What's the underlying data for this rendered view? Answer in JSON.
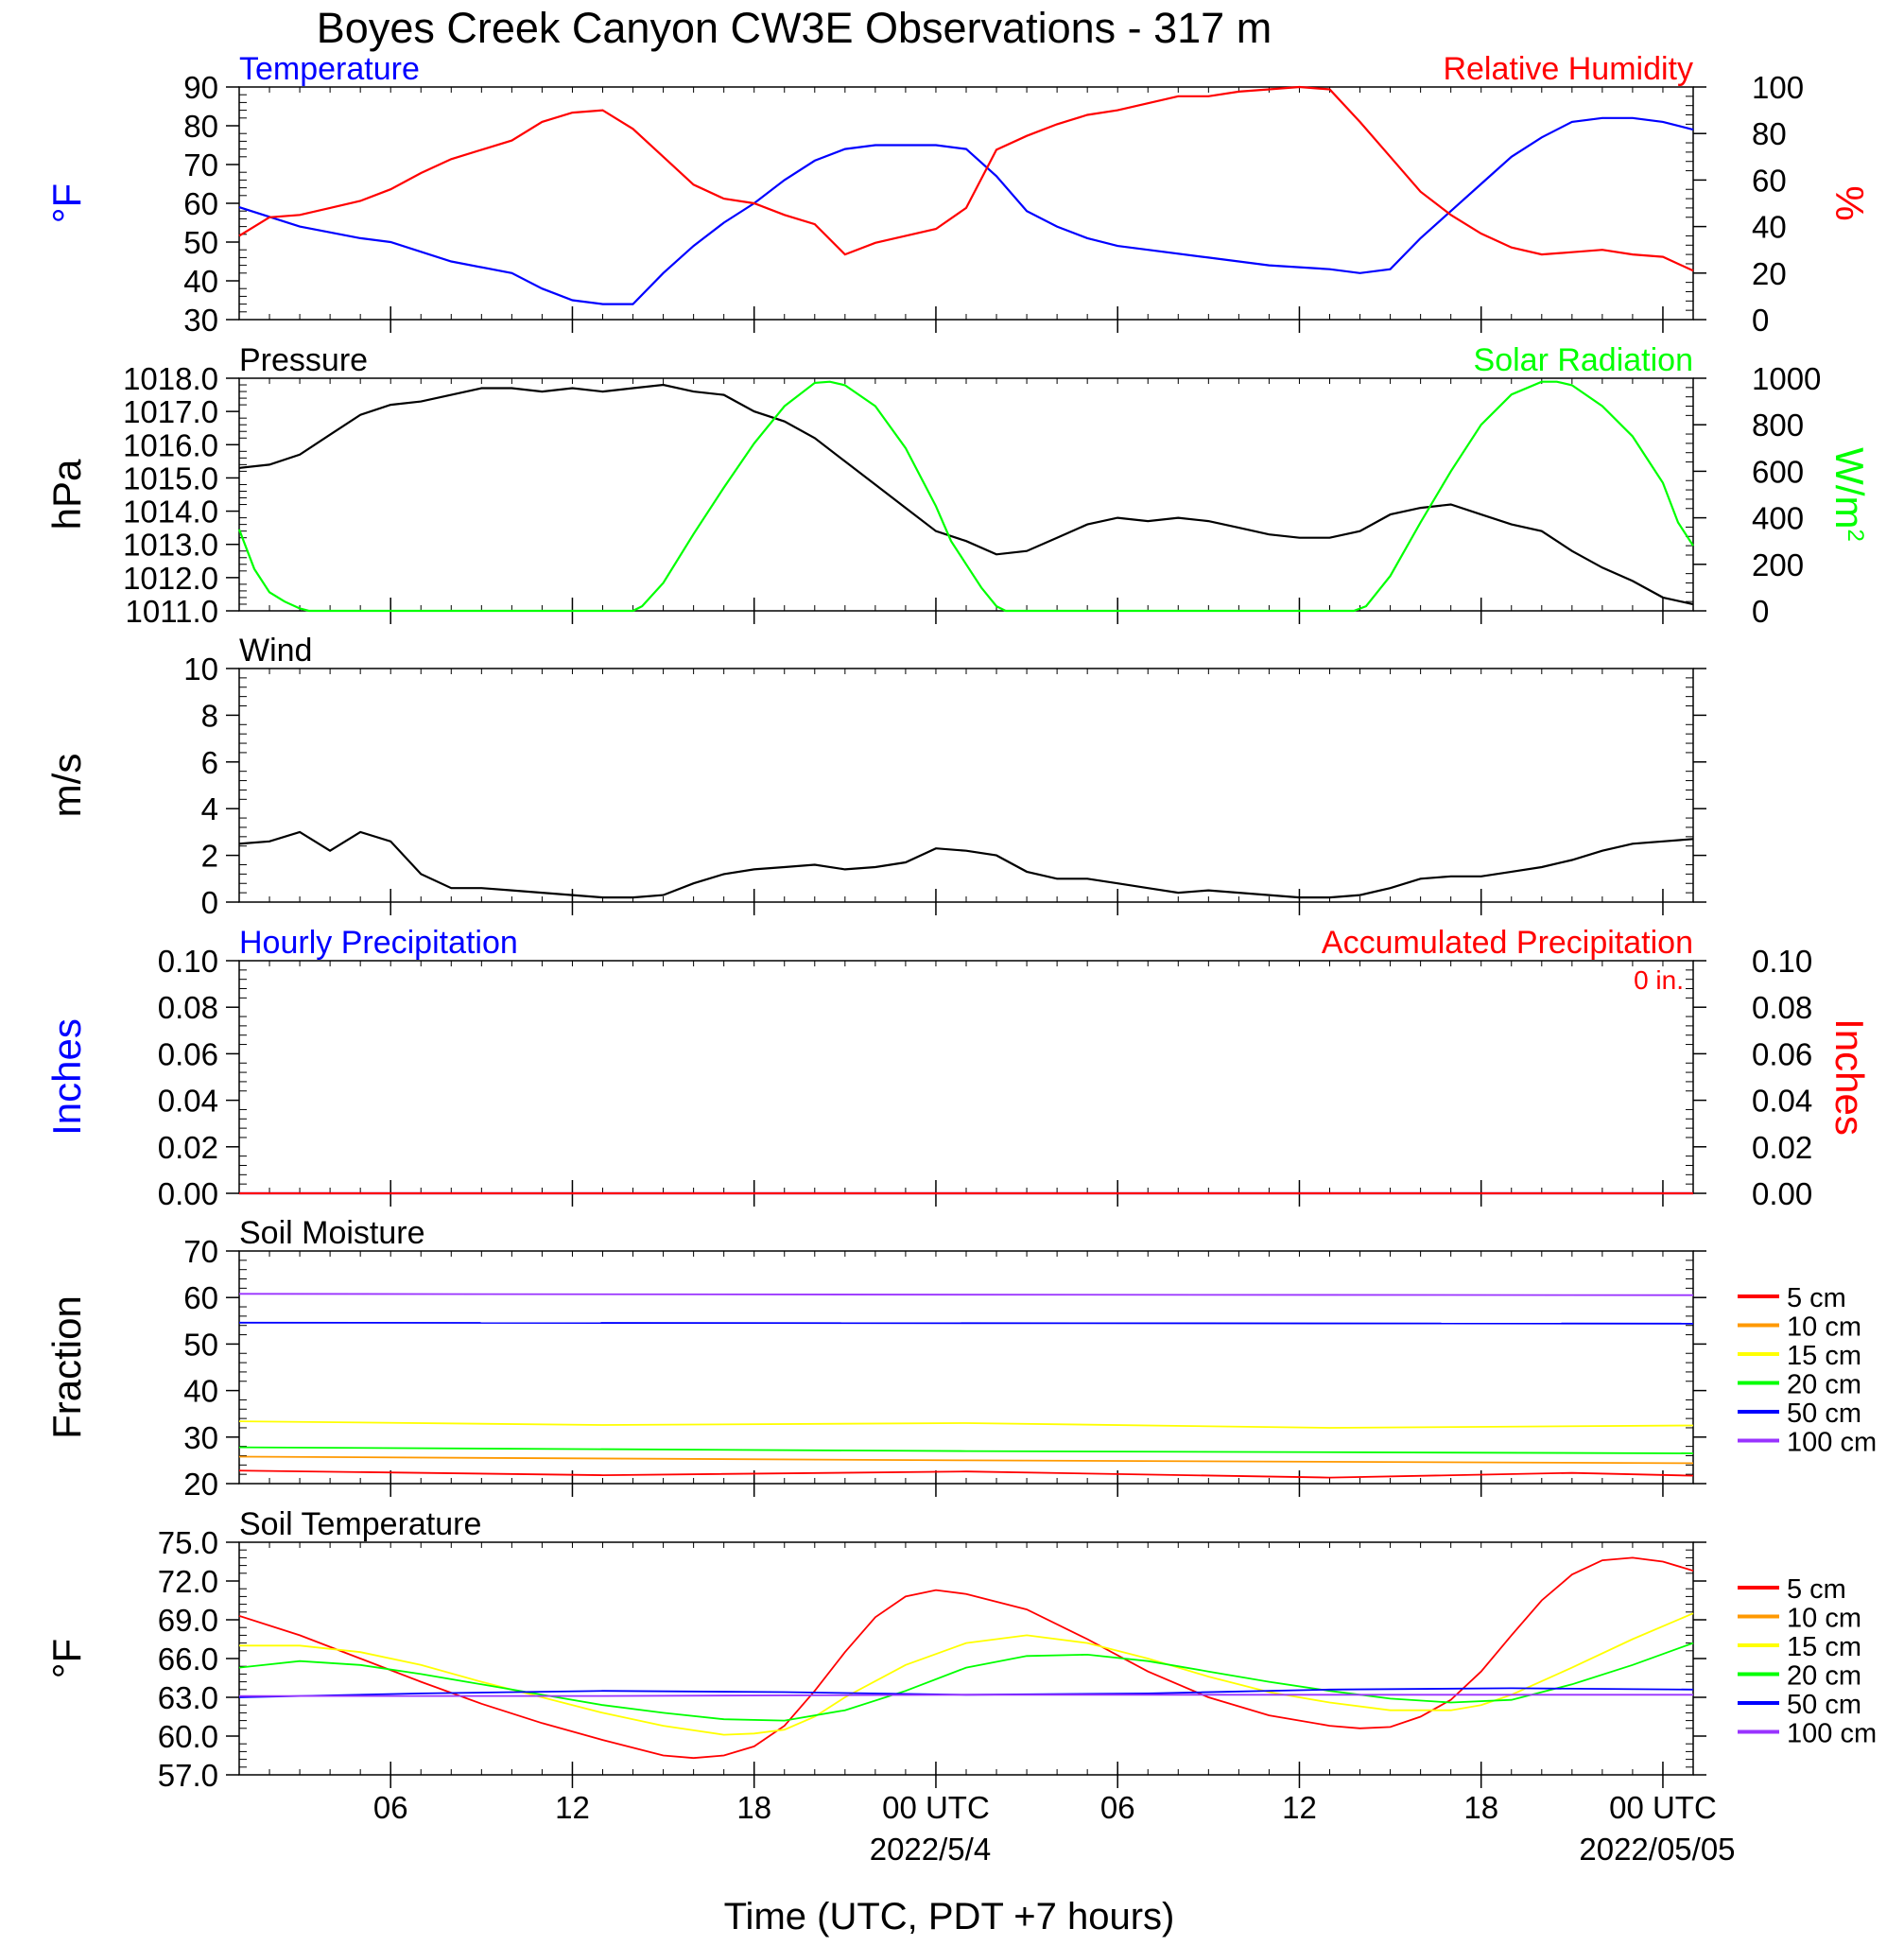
{
  "title": "Boyes Creek Canyon CW3E Observations - 317 m",
  "colors": {
    "temperature": "#0000ff",
    "humidity": "#ff0000",
    "pressure": "#000000",
    "solar": "#00ff00",
    "wind": "#000000",
    "barbs": "#ff0000",
    "hourly_precip": "#0000ff",
    "accum_precip": "#ff0000",
    "depth_5cm": "#ff0000",
    "depth_10cm": "#ff9900",
    "depth_15cm": "#ffff00",
    "depth_20cm": "#00ff00",
    "depth_50cm": "#0000ff",
    "depth_100cm": "#9933ff"
  },
  "x_axis": {
    "xlabel": "Time (UTC, PDT +7 hours)",
    "range_hours": [
      0,
      48
    ],
    "ticks": [
      {
        "label": "06",
        "hour": 5
      },
      {
        "label": "12",
        "hour": 11
      },
      {
        "label": "18",
        "hour": 17
      },
      {
        "label": "00 UTC",
        "hour": 23
      },
      {
        "label": "06",
        "hour": 29
      },
      {
        "label": "12",
        "hour": 35
      },
      {
        "label": "18",
        "hour": 41
      },
      {
        "label": "00 UTC",
        "hour": 47
      }
    ],
    "date_labels": [
      {
        "label": "2022/5/4",
        "hour": 23
      },
      {
        "label": "2022/05/05",
        "hour": 47
      }
    ]
  },
  "chart_data": [
    {
      "id": "temp_rh",
      "type": "line",
      "left_title": "Temperature",
      "right_title": "Relative Humidity",
      "left_ylabel": "°F",
      "right_ylabel": "%",
      "left_ylim": [
        30,
        90
      ],
      "right_ylim": [
        0,
        100
      ],
      "left_ticks": [
        "30",
        "40",
        "50",
        "60",
        "70",
        "80",
        "90"
      ],
      "right_ticks": [
        "0",
        "20",
        "40",
        "60",
        "80",
        "100"
      ],
      "series": [
        {
          "name": "Temperature",
          "axis": "left",
          "color": "#0000ff",
          "x": [
            0,
            2,
            4,
            5,
            7,
            9,
            10,
            11,
            12,
            13,
            14,
            15,
            16,
            17,
            18,
            19,
            20,
            21,
            22,
            23,
            24,
            25,
            26,
            27,
            28,
            29,
            30,
            32,
            34,
            36,
            37,
            38,
            39,
            40,
            41,
            42,
            43,
            44,
            45,
            46,
            47,
            48
          ],
          "y": [
            59,
            54,
            51,
            50,
            45,
            42,
            38,
            35,
            34,
            34,
            42,
            49,
            55,
            60,
            66,
            71,
            74,
            75,
            75,
            75,
            74,
            67,
            58,
            54,
            51,
            49,
            48,
            46,
            44,
            43,
            42,
            43,
            51,
            58,
            65,
            72,
            77,
            81,
            82,
            82,
            81,
            79
          ]
        },
        {
          "name": "Relative Humidity",
          "axis": "right",
          "color": "#ff0000",
          "x": [
            0,
            1,
            2,
            3,
            4,
            5,
            6,
            7,
            8,
            9,
            10,
            11,
            12,
            13,
            14,
            15,
            16,
            17,
            18,
            19,
            20,
            21,
            22,
            23,
            24,
            25,
            26,
            27,
            28,
            29,
            30,
            31,
            32,
            33,
            34,
            35,
            36,
            37,
            38,
            39,
            40,
            41,
            42,
            43,
            44,
            45,
            46,
            47,
            48
          ],
          "y": [
            36,
            44,
            45,
            48,
            51,
            56,
            63,
            69,
            73,
            77,
            85,
            89,
            90,
            82,
            70,
            58,
            52,
            50,
            45,
            41,
            28,
            33,
            36,
            39,
            48,
            73,
            79,
            84,
            88,
            90,
            93,
            96,
            96,
            98,
            99,
            100,
            99,
            85,
            70,
            55,
            45,
            37,
            31,
            28,
            29,
            30,
            28,
            27,
            21
          ]
        }
      ]
    },
    {
      "id": "pressure_solar",
      "type": "line",
      "left_title": "Pressure",
      "right_title": "Solar Radiation",
      "left_ylabel": "hPa",
      "right_ylabel": "W/m",
      "right_ylabel_sup": "2",
      "left_ylim": [
        1011,
        1018
      ],
      "right_ylim": [
        0,
        1000
      ],
      "left_ticks": [
        "1011.0",
        "1012.0",
        "1013.0",
        "1014.0",
        "1015.0",
        "1016.0",
        "1017.0",
        "1018.0"
      ],
      "right_ticks": [
        "0",
        "200",
        "400",
        "600",
        "800",
        "1000"
      ],
      "series": [
        {
          "name": "Pressure",
          "axis": "left",
          "color": "#000000",
          "x": [
            0,
            1,
            2,
            3,
            4,
            5,
            6,
            7,
            8,
            9,
            10,
            11,
            12,
            13,
            14,
            15,
            16,
            17,
            18,
            19,
            20,
            21,
            22,
            23,
            24,
            25,
            26,
            27,
            28,
            29,
            30,
            31,
            32,
            33,
            34,
            35,
            36,
            37,
            38,
            39,
            40,
            41,
            42,
            43,
            44,
            45,
            46,
            47,
            48
          ],
          "y": [
            1015.3,
            1015.4,
            1015.7,
            1016.3,
            1016.9,
            1017.2,
            1017.3,
            1017.5,
            1017.7,
            1017.7,
            1017.6,
            1017.7,
            1017.6,
            1017.7,
            1017.8,
            1017.6,
            1017.5,
            1017.0,
            1016.7,
            1016.2,
            1015.5,
            1014.8,
            1014.1,
            1013.4,
            1013.1,
            1012.7,
            1012.8,
            1013.2,
            1013.6,
            1013.8,
            1013.7,
            1013.8,
            1013.7,
            1013.5,
            1013.3,
            1013.2,
            1013.2,
            1013.4,
            1013.9,
            1014.1,
            1014.2,
            1013.9,
            1013.6,
            1013.4,
            1012.8,
            1012.3,
            1011.9,
            1011.4,
            1011.2
          ]
        },
        {
          "name": "Solar Radiation",
          "axis": "right",
          "color": "#00ff00",
          "x": [
            0,
            0.5,
            1,
            1.5,
            2,
            2.3,
            13.0,
            13.3,
            14,
            15,
            16,
            17,
            18,
            19,
            19.5,
            20,
            21,
            22,
            23,
            23.5,
            24,
            24.5,
            25,
            25.3,
            36.8,
            37.2,
            38,
            39,
            40,
            41,
            42,
            43,
            43.5,
            44,
            45,
            46,
            47,
            47.5,
            48
          ],
          "y": [
            350,
            180,
            80,
            40,
            10,
            0,
            0,
            20,
            120,
            330,
            530,
            720,
            880,
            980,
            985,
            970,
            880,
            700,
            450,
            300,
            200,
            100,
            20,
            0,
            0,
            20,
            150,
            380,
            600,
            800,
            930,
            985,
            985,
            970,
            880,
            750,
            550,
            380,
            280
          ]
        }
      ]
    },
    {
      "id": "wind",
      "type": "line",
      "left_title": "Wind",
      "left_ylabel": "m/s",
      "left_ylim": [
        0,
        10
      ],
      "left_ticks": [
        "0",
        "2",
        "4",
        "6",
        "8",
        "10"
      ],
      "series": [
        {
          "name": "Wind",
          "axis": "left",
          "color": "#000000",
          "x": [
            0,
            1,
            2,
            3,
            4,
            5,
            6,
            7,
            8,
            9,
            10,
            11,
            12,
            13,
            14,
            15,
            16,
            17,
            18,
            19,
            20,
            21,
            22,
            23,
            24,
            25,
            26,
            27,
            28,
            29,
            30,
            31,
            32,
            33,
            34,
            35,
            36,
            37,
            38,
            39,
            40,
            41,
            42,
            43,
            44,
            45,
            46,
            47,
            48
          ],
          "y": [
            2.5,
            2.6,
            3.0,
            2.2,
            3.0,
            2.6,
            1.2,
            0.6,
            0.6,
            0.5,
            0.4,
            0.3,
            0.2,
            0.2,
            0.3,
            0.8,
            1.2,
            1.4,
            1.5,
            1.6,
            1.4,
            1.5,
            1.7,
            2.3,
            2.2,
            2.0,
            1.3,
            1.0,
            1.0,
            0.8,
            0.6,
            0.4,
            0.5,
            0.4,
            0.3,
            0.2,
            0.2,
            0.3,
            0.6,
            1.0,
            1.1,
            1.1,
            1.3,
            1.5,
            1.8,
            2.2,
            2.5,
            2.6,
            2.7
          ]
        }
      ]
    },
    {
      "id": "precip",
      "type": "line",
      "left_title": "Hourly Precipitation",
      "right_title": "Accumulated Precipitation",
      "annotation": "0 in.",
      "left_ylabel": "Inches",
      "right_ylabel": "Inches",
      "left_ylim": [
        0,
        0.1
      ],
      "right_ylim": [
        0,
        0.1
      ],
      "left_ticks": [
        "0.00",
        "0.02",
        "0.04",
        "0.06",
        "0.08",
        "0.10"
      ],
      "right_ticks": [
        "0.00",
        "0.02",
        "0.04",
        "0.06",
        "0.08",
        "0.10"
      ],
      "series": [
        {
          "name": "Hourly Precipitation",
          "axis": "left",
          "color": "#0000ff",
          "x": [
            0,
            48
          ],
          "y": [
            0,
            0
          ]
        },
        {
          "name": "Accumulated Precipitation",
          "axis": "right",
          "color": "#ff0000",
          "x": [
            0,
            48
          ],
          "y": [
            0,
            0
          ]
        }
      ]
    },
    {
      "id": "soil_moisture",
      "type": "line",
      "left_title": "Soil Moisture",
      "left_ylabel": "Fraction",
      "left_ylim": [
        20,
        70
      ],
      "left_ticks": [
        "20",
        "30",
        "40",
        "50",
        "60",
        "70"
      ],
      "legend": [
        "5 cm",
        "10 cm",
        "15 cm",
        "20 cm",
        "50 cm",
        "100 cm"
      ],
      "series": [
        {
          "name": "5 cm",
          "axis": "left",
          "color": "#ff0000",
          "x": [
            0,
            12,
            24,
            36,
            44,
            48
          ],
          "y": [
            22.8,
            21.8,
            22.6,
            21.3,
            22.3,
            21.7
          ]
        },
        {
          "name": "10 cm",
          "axis": "left",
          "color": "#ff9900",
          "x": [
            0,
            24,
            48
          ],
          "y": [
            25.8,
            25.0,
            24.4
          ]
        },
        {
          "name": "15 cm",
          "axis": "left",
          "color": "#ffff00",
          "x": [
            0,
            12,
            24,
            36,
            48
          ],
          "y": [
            33.4,
            32.6,
            33.0,
            32.0,
            32.5
          ]
        },
        {
          "name": "20 cm",
          "axis": "left",
          "color": "#00ff00",
          "x": [
            0,
            24,
            48
          ],
          "y": [
            27.8,
            27.0,
            26.5
          ]
        },
        {
          "name": "50 cm",
          "axis": "left",
          "color": "#0000ff",
          "x": [
            0,
            24,
            48
          ],
          "y": [
            54.6,
            54.5,
            54.4
          ]
        },
        {
          "name": "100 cm",
          "axis": "left",
          "color": "#9933ff",
          "x": [
            0,
            24,
            48
          ],
          "y": [
            60.8,
            60.6,
            60.5
          ]
        }
      ]
    },
    {
      "id": "soil_temperature",
      "type": "line",
      "left_title": "Soil Temperature",
      "left_ylabel": "°F",
      "left_ylim": [
        57,
        75
      ],
      "left_ticks": [
        "57.0",
        "60.0",
        "63.0",
        "66.0",
        "69.0",
        "72.0",
        "75.0"
      ],
      "legend": [
        "5 cm",
        "10 cm",
        "15 cm",
        "20 cm",
        "50 cm",
        "100 cm"
      ],
      "series": [
        {
          "name": "5 cm",
          "axis": "left",
          "color": "#ff0000",
          "x": [
            0,
            2,
            4,
            6,
            8,
            10,
            12,
            14,
            15,
            16,
            17,
            18,
            19,
            20,
            21,
            22,
            23,
            24,
            26,
            28,
            30,
            32,
            34,
            36,
            37,
            38,
            39,
            40,
            41,
            42,
            43,
            44,
            45,
            46,
            47,
            48
          ],
          "y": [
            69.3,
            67.8,
            66.0,
            64.2,
            62.5,
            61.0,
            59.7,
            58.5,
            58.3,
            58.5,
            59.2,
            60.8,
            63.5,
            66.5,
            69.2,
            70.8,
            71.3,
            71.0,
            69.8,
            67.5,
            65.0,
            63.0,
            61.6,
            60.8,
            60.6,
            60.7,
            61.5,
            62.8,
            65.0,
            67.8,
            70.5,
            72.5,
            73.6,
            73.8,
            73.5,
            72.8
          ]
        },
        {
          "name": "10 cm",
          "axis": "left",
          "color": "#ff9900",
          "x": [
            0,
            48
          ],
          "y": [
            null,
            null
          ]
        },
        {
          "name": "15 cm",
          "axis": "left",
          "color": "#ffff00",
          "x": [
            0,
            2,
            4,
            6,
            8,
            10,
            12,
            14,
            16,
            17,
            18,
            19,
            20,
            22,
            24,
            26,
            28,
            30,
            32,
            34,
            36,
            38,
            40,
            41,
            42,
            44,
            46,
            48
          ],
          "y": [
            67.0,
            67.0,
            66.5,
            65.5,
            64.2,
            63.0,
            61.8,
            60.8,
            60.1,
            60.2,
            60.5,
            61.5,
            63.0,
            65.5,
            67.2,
            67.8,
            67.2,
            66.0,
            64.6,
            63.4,
            62.6,
            62.0,
            62.0,
            62.4,
            63.2,
            65.3,
            67.5,
            69.5
          ]
        },
        {
          "name": "20 cm",
          "axis": "left",
          "color": "#00ff00",
          "x": [
            0,
            2,
            4,
            6,
            8,
            10,
            12,
            14,
            16,
            18,
            20,
            22,
            24,
            26,
            28,
            30,
            32,
            34,
            36,
            38,
            40,
            42,
            44,
            46,
            48
          ],
          "y": [
            65.3,
            65.8,
            65.5,
            64.8,
            64.0,
            63.2,
            62.4,
            61.8,
            61.3,
            61.2,
            62.0,
            63.5,
            65.3,
            66.2,
            66.3,
            65.8,
            65.0,
            64.2,
            63.5,
            62.9,
            62.6,
            62.8,
            64.0,
            65.5,
            67.2
          ]
        },
        {
          "name": "50 cm",
          "axis": "left",
          "color": "#0000ff",
          "x": [
            0,
            6,
            12,
            18,
            24,
            30,
            36,
            42,
            48
          ],
          "y": [
            63.0,
            63.3,
            63.5,
            63.4,
            63.2,
            63.3,
            63.6,
            63.7,
            63.6
          ]
        },
        {
          "name": "100 cm",
          "axis": "left",
          "color": "#9933ff",
          "x": [
            0,
            12,
            24,
            36,
            48
          ],
          "y": [
            63.1,
            63.1,
            63.2,
            63.2,
            63.2
          ]
        }
      ]
    }
  ]
}
